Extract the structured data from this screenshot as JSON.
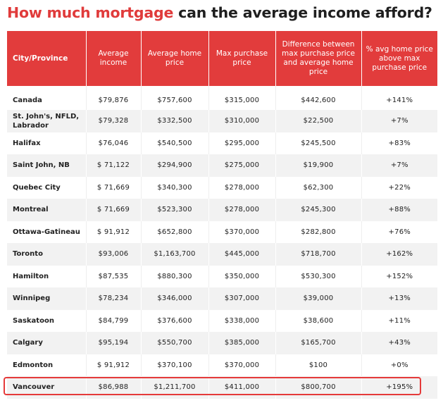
{
  "title": {
    "part1": "How much mortgage",
    "part2": " can the average income afford?"
  },
  "colors": {
    "accent": "#e03b3b",
    "header_bg": "#e23c3c",
    "stripe": "#f2f2f2",
    "highlight": "#e53a3a"
  },
  "table": {
    "headers": [
      "City/Province",
      "Average income",
      "Average home price",
      "Max purchase price",
      "Difference between max purchase price and average home price",
      "% avg home price above max purchase price"
    ],
    "rows": [
      [
        "Canada",
        "$79,876",
        "$757,600",
        "$315,000",
        "$442,600",
        "+141%"
      ],
      [
        "St. John's, NFLD, Labrador",
        "$79,328",
        "$332,500",
        "$310,000",
        "$22,500",
        "+7%"
      ],
      [
        "Halifax",
        "$76,046",
        "$540,500",
        "$295,000",
        "$245,500",
        "+83%"
      ],
      [
        "Saint John, NB",
        "$ 71,122",
        "$294,900",
        "$275,000",
        "$19,900",
        "+7%"
      ],
      [
        "Quebec City",
        "$ 71,669",
        "$340,300",
        "$278,000",
        "$62,300",
        "+22%"
      ],
      [
        "Montreal",
        "$ 71,669",
        "$523,300",
        "$278,000",
        "$245,300",
        "+88%"
      ],
      [
        "Ottawa-Gatineau",
        "$ 91,912",
        "$652,800",
        "$370,000",
        "$282,800",
        "+76%"
      ],
      [
        "Toronto",
        "$93,006",
        "$1,163,700",
        "$445,000",
        "$718,700",
        "+162%"
      ],
      [
        "Hamilton",
        "$87,535",
        "$880,300",
        "$350,000",
        "$530,300",
        "+152%"
      ],
      [
        "Winnipeg",
        "$78,234",
        "$346,000",
        "$307,000",
        "$39,000",
        "+13%"
      ],
      [
        "Saskatoon",
        "$84,799",
        "$376,600",
        "$338,000",
        "$38,600",
        "+11%"
      ],
      [
        "Calgary",
        "$95,194",
        "$550,700",
        "$385,000",
        "$165,700",
        "+43%"
      ],
      [
        "Edmonton",
        "$ 91,912",
        "$370,100",
        "$370,000",
        "$100",
        "+0%"
      ],
      [
        "Vancouver",
        "$86,988",
        "$1,211,700",
        "$411,000",
        "$800,700",
        "+195%"
      ]
    ],
    "highlighted_row": "Vancouver"
  }
}
